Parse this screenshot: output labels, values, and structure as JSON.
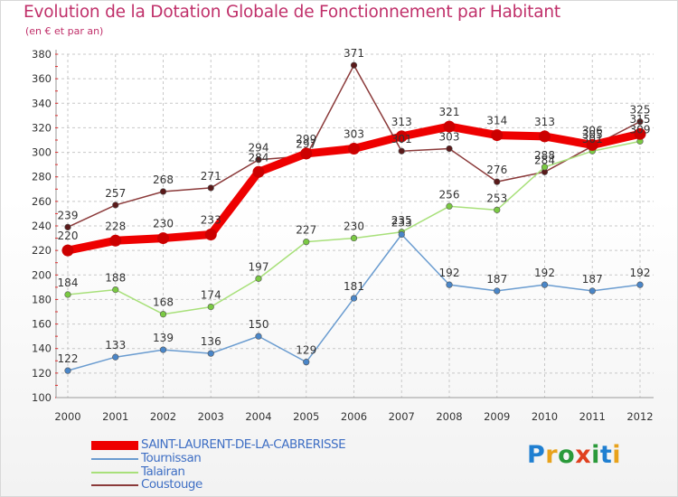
{
  "header": {
    "title": "Evolution de la Dotation Globale de Fonctionnement par Habitant",
    "subtitle": "(en € et par an)"
  },
  "logo": {
    "text": "Proxiti",
    "letter_colors": [
      "#1f7fd1",
      "#e8a21b",
      "#2a9a3a",
      "#e0401f",
      "#2a9a3a",
      "#1f7fd1",
      "#e8a21b"
    ]
  },
  "chart_data": {
    "type": "line",
    "x": [
      "2000",
      "2001",
      "2002",
      "2003",
      "2004",
      "2005",
      "2006",
      "2007",
      "2008",
      "2009",
      "2010",
      "2011",
      "2012"
    ],
    "ylim": [
      100,
      380
    ],
    "yticks": [
      100,
      120,
      140,
      160,
      180,
      200,
      220,
      240,
      260,
      280,
      300,
      320,
      340,
      360,
      380
    ],
    "grid": true,
    "legend_position": "bottom-left",
    "series": [
      {
        "name": "Coustouge",
        "color": "#8b3a3a",
        "marker_color": "#5a1a1a",
        "values": [
          239,
          257,
          268,
          271,
          294,
          297,
          371,
          301,
          303,
          276,
          284,
          305,
          325
        ]
      },
      {
        "name": "Talairan",
        "color": "#a8e07a",
        "marker_color": "#7ac943",
        "values": [
          184,
          188,
          168,
          174,
          197,
          227,
          230,
          235,
          256,
          253,
          288,
          301,
          309
        ]
      },
      {
        "name": "Tournissan",
        "color": "#6a9cd0",
        "marker_color": "#4a86c8",
        "values": [
          122,
          133,
          139,
          136,
          150,
          129,
          181,
          233,
          192,
          187,
          192,
          187,
          192
        ]
      },
      {
        "name": "SAINT-LAURENT-DE-LA-CABRERISSE",
        "color": "#ee0000",
        "marker_color": "#cc0000",
        "values": [
          220,
          228,
          230,
          233,
          284,
          299,
          303,
          313,
          321,
          314,
          313,
          306,
          315
        ]
      }
    ]
  }
}
